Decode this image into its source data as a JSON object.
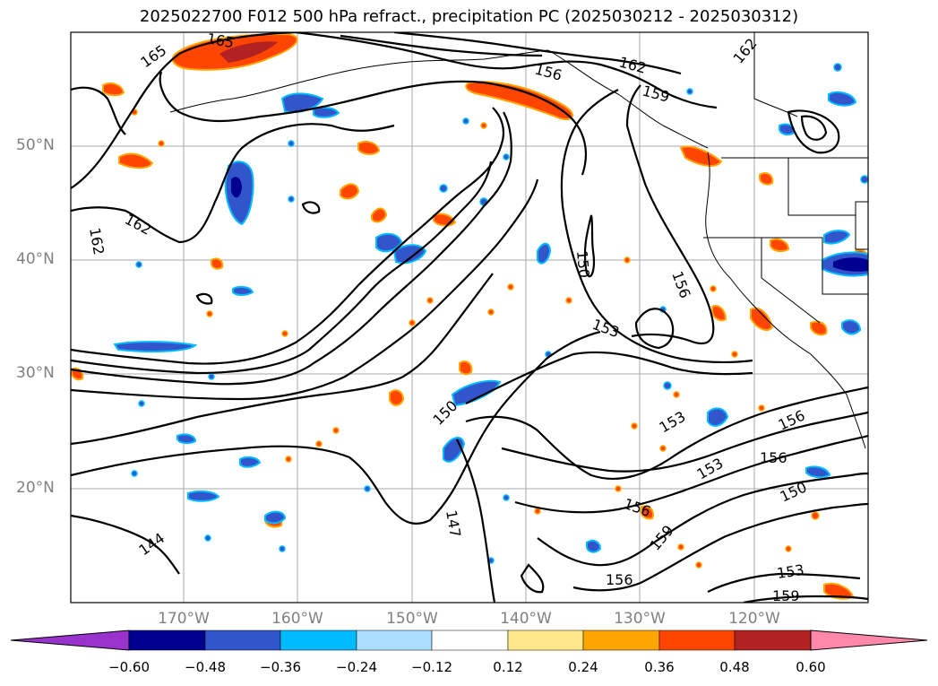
{
  "title": "2025022700 F012 500 hPa refract., precipitation PC (2025030212 - 2025030312)",
  "lat_ticks": [
    "50°N",
    "40°N",
    "30°N",
    "20°N"
  ],
  "lon_ticks": [
    "170°W",
    "160°W",
    "150°W",
    "140°W",
    "130°W",
    "120°W"
  ],
  "contour_labels": [
    "165",
    "165",
    "162",
    "162",
    "156",
    "162",
    "159",
    "162",
    "150",
    "156",
    "153",
    "150",
    "147",
    "144",
    "153",
    "153",
    "156",
    "156",
    "150",
    "156",
    "159",
    "153",
    "159",
    "156"
  ],
  "colorbar": {
    "colors": [
      "#9933cc",
      "#000090",
      "#3355cc",
      "#00bbff",
      "#aaddff",
      "#ffffff",
      "#ffe88a",
      "#ffa500",
      "#ff4500",
      "#b22222",
      "#ff88aa"
    ],
    "labels": [
      "−0.60",
      "−0.48",
      "−0.36",
      "−0.24",
      "−0.12",
      "0.12",
      "0.24",
      "0.36",
      "0.48",
      "0.60"
    ],
    "extend": "both"
  },
  "colors": {
    "contour": "#000000",
    "grid": "#aaaaaa",
    "coast": "#000000"
  }
}
